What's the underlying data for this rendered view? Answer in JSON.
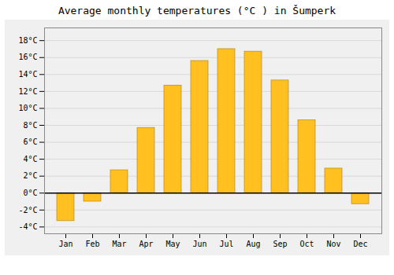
{
  "chart_data": {
    "type": "bar",
    "title": "Average monthly temperatures (°C ) in Šumperk",
    "categories": [
      "Jan",
      "Feb",
      "Mar",
      "Apr",
      "May",
      "Jun",
      "Jul",
      "Aug",
      "Sep",
      "Oct",
      "Nov",
      "Dec"
    ],
    "values": [
      -3.3,
      -1.0,
      2.7,
      7.7,
      12.7,
      15.6,
      17.0,
      16.7,
      13.3,
      8.6,
      2.9,
      -1.3
    ],
    "color": "#FFC020",
    "ylim": [
      -4.8,
      19.5
    ],
    "yticks": [
      {
        "value": -4,
        "label": "-4°C"
      },
      {
        "value": -2,
        "label": "-2°C"
      },
      {
        "value": 0,
        "label": "0°C"
      },
      {
        "value": 2,
        "label": "2°C"
      },
      {
        "value": 4,
        "label": "4°C"
      },
      {
        "value": 6,
        "label": "6°C"
      },
      {
        "value": 8,
        "label": "8°C"
      },
      {
        "value": 10,
        "label": "10°C"
      },
      {
        "value": 12,
        "label": "12°C"
      },
      {
        "value": 14,
        "label": "14°C"
      },
      {
        "value": 16,
        "label": "16°C"
      },
      {
        "value": 18,
        "label": "18°C"
      }
    ],
    "grid": true
  }
}
